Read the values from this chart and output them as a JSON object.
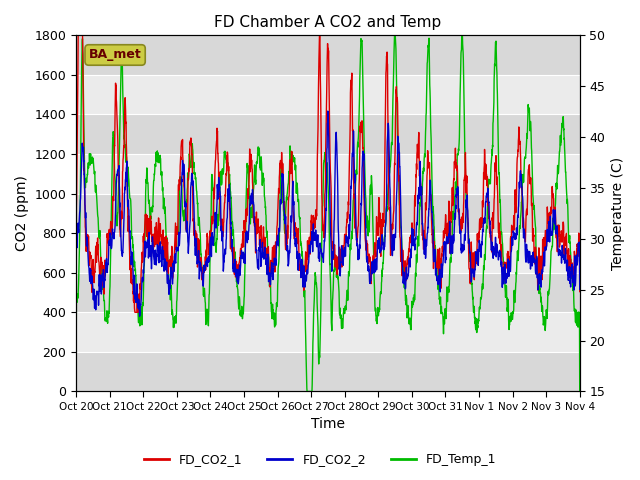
{
  "title": "FD Chamber A CO2 and Temp",
  "xlabel": "Time",
  "ylabel_left": "CO2 (ppm)",
  "ylabel_right": "Temperature (C)",
  "annotation": "BA_met",
  "ylim_left": [
    0,
    1800
  ],
  "ylim_right": [
    15,
    50
  ],
  "yticks_left": [
    0,
    200,
    400,
    600,
    800,
    1000,
    1200,
    1400,
    1600,
    1800
  ],
  "yticks_right": [
    15,
    20,
    25,
    30,
    35,
    40,
    45,
    50
  ],
  "xtick_labels": [
    "Oct 20",
    "Oct 21",
    "Oct 22",
    "Oct 23",
    "Oct 24",
    "Oct 25",
    "Oct 26",
    "Oct 27",
    "Oct 28",
    "Oct 29",
    "Oct 30",
    "Oct 31",
    "Nov 1",
    "Nov 2",
    "Nov 3",
    "Nov 4"
  ],
  "colors": {
    "FD_CO2_1": "#dd0000",
    "FD_CO2_2": "#0000cc",
    "FD_Temp_1": "#00bb00"
  },
  "plot_bg_color": "#e8e8e8",
  "band_color_light": "#ebebeb",
  "band_color_dark": "#d8d8d8",
  "grid_color": "#ffffff",
  "line_width": 1.0,
  "annotation_bg": "#cccc44",
  "annotation_edge": "#888820",
  "annotation_text_color": "#660000"
}
